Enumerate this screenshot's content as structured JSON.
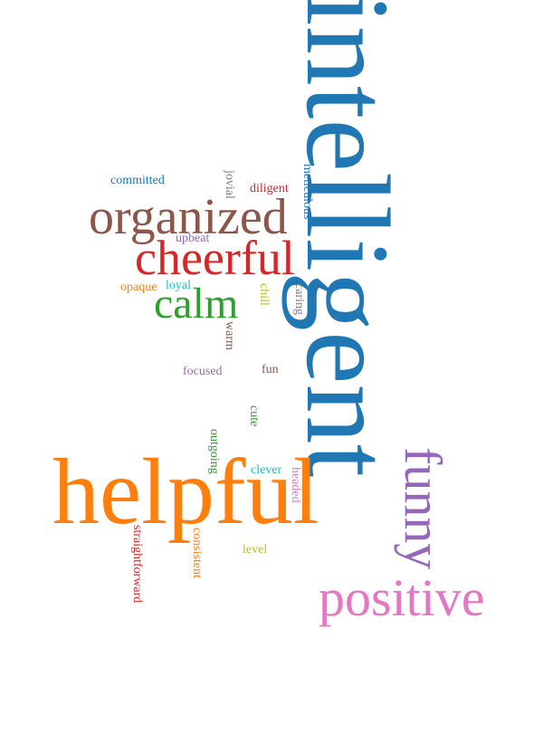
{
  "colors": {
    "blue": "#1f77b4",
    "orange": "#ff7f0e",
    "green": "#2ca02c",
    "red": "#d62728",
    "purple": "#9467bd",
    "brown": "#8c564b",
    "pink": "#e377c2",
    "gray": "#7f7f7f",
    "olive": "#bcbd22",
    "cyan": "#17becf"
  },
  "words": {
    "intelligent": "intelligent",
    "helpful": "helpful",
    "organized": "organized",
    "cheerful": "cheerful",
    "positive": "positive",
    "funny": "funny",
    "calm": "calm",
    "committed": "committed",
    "jovial": "jovial",
    "diligent": "diligent",
    "meticulous": "meticulous",
    "upbeat": "upbeat",
    "opaque": "opaque",
    "loyal": "loyal",
    "chill": "chill",
    "caring": "caring",
    "warm": "warm",
    "focused": "focused",
    "fun": "fun",
    "cute": "cute",
    "outgoing": "outgoing",
    "clever": "clever",
    "headed": "headed",
    "straightforward": "straightforward",
    "consistent": "consistent",
    "level": "level"
  }
}
